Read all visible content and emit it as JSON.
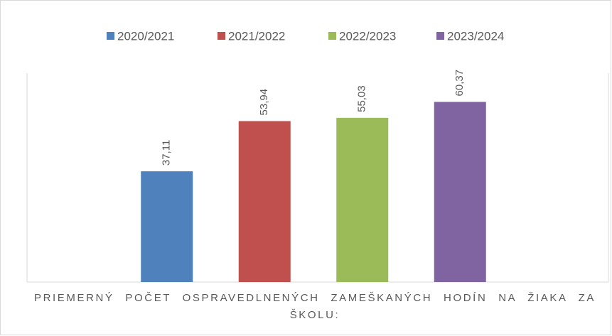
{
  "chart_data": {
    "type": "bar",
    "categories": [
      "PRIEMERNÝ POČET OSPRAVEDLNENÝCH ZAMEŠKANÝCH HODÍN NA ŽIAKA ZA ŠKOLU:"
    ],
    "series": [
      {
        "name": "2020/2021",
        "color": "#4f81bd",
        "values": [
          37.11
        ],
        "value_labels": [
          "37,11"
        ]
      },
      {
        "name": "2021/2022",
        "color": "#c0504d",
        "values": [
          53.94
        ],
        "value_labels": [
          "53,94"
        ]
      },
      {
        "name": "2022/2023",
        "color": "#9bbb59",
        "values": [
          55.03
        ],
        "value_labels": [
          "55,03"
        ]
      },
      {
        "name": "2023/2024",
        "color": "#8064a2",
        "values": [
          60.37
        ],
        "value_labels": [
          "60,37"
        ]
      }
    ],
    "ylim": [
      0,
      70
    ],
    "legend": "top"
  }
}
